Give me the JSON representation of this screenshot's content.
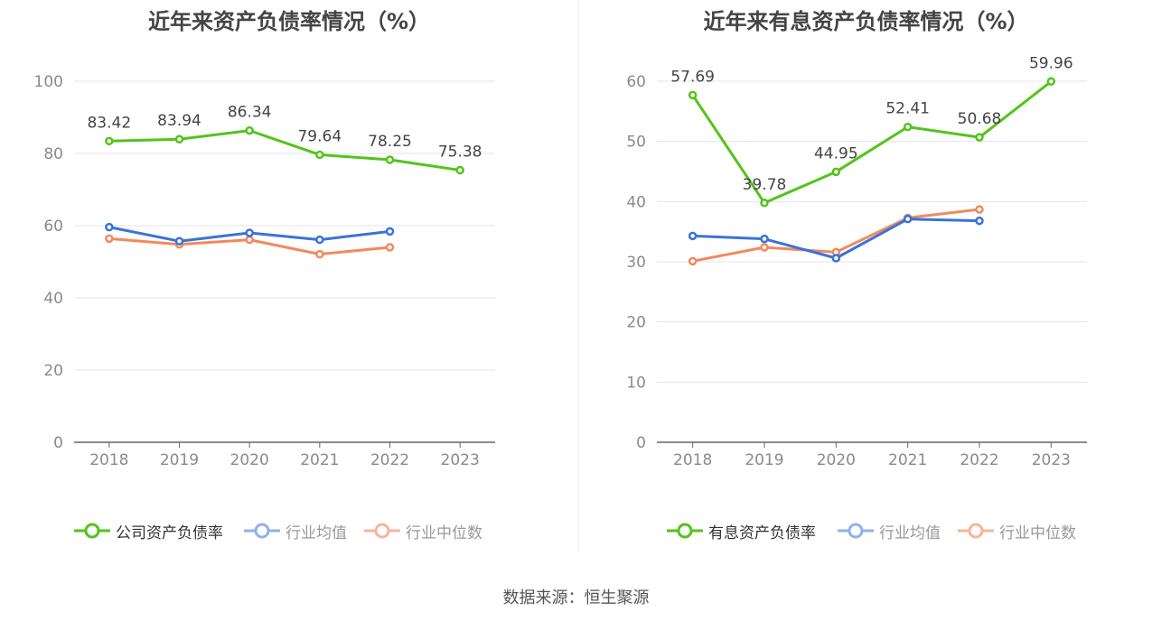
{
  "colors": {
    "company": "#52c41a",
    "avg": "#3a72d9",
    "median": "#f08a5d",
    "avg_legend": "#8fb1ee",
    "median_legend": "#f7b49b",
    "grid": "#e3e3ee",
    "axis": "#666666",
    "tick": "#8a8a8a",
    "label": "#444444"
  },
  "source": "数据来源：恒生聚源",
  "chart_data": [
    {
      "type": "line",
      "title": "近年来资产负债率情况（%）",
      "categories": [
        "2018",
        "2019",
        "2020",
        "2021",
        "2022",
        "2023"
      ],
      "ylim": [
        0,
        100
      ],
      "yticks": [
        "0",
        "20",
        "40",
        "60",
        "80",
        "100"
      ],
      "grid": true,
      "legend": "bottom",
      "series": [
        {
          "name": "公司资产负债率",
          "values": [
            83.42,
            83.94,
            86.34,
            79.64,
            78.25,
            75.38
          ],
          "labels": [
            "83.42",
            "83.94",
            "86.34",
            "79.64",
            "78.25",
            "75.38"
          ]
        },
        {
          "name": "行业均值",
          "values": [
            59.6,
            55.7,
            58.0,
            56.1,
            58.4,
            null
          ]
        },
        {
          "name": "行业中位数",
          "values": [
            56.4,
            54.8,
            56.1,
            52.1,
            54.0,
            null
          ]
        }
      ]
    },
    {
      "type": "line",
      "title": "近年来有息资产负债率情况（%）",
      "categories": [
        "2018",
        "2019",
        "2020",
        "2021",
        "2022",
        "2023"
      ],
      "ylim": [
        0,
        60
      ],
      "yticks": [
        "0",
        "10",
        "20",
        "30",
        "40",
        "50",
        "60"
      ],
      "grid": true,
      "legend": "bottom",
      "series": [
        {
          "name": "有息资产负债率",
          "values": [
            57.69,
            39.78,
            44.95,
            52.41,
            50.68,
            59.96
          ],
          "labels": [
            "57.69",
            "39.78",
            "44.95",
            "52.41",
            "50.68",
            "59.96"
          ]
        },
        {
          "name": "行业均值",
          "values": [
            34.3,
            33.8,
            30.6,
            37.1,
            36.8,
            null
          ]
        },
        {
          "name": "行业中位数",
          "values": [
            30.1,
            32.4,
            31.6,
            37.3,
            38.7,
            null
          ]
        }
      ]
    }
  ]
}
